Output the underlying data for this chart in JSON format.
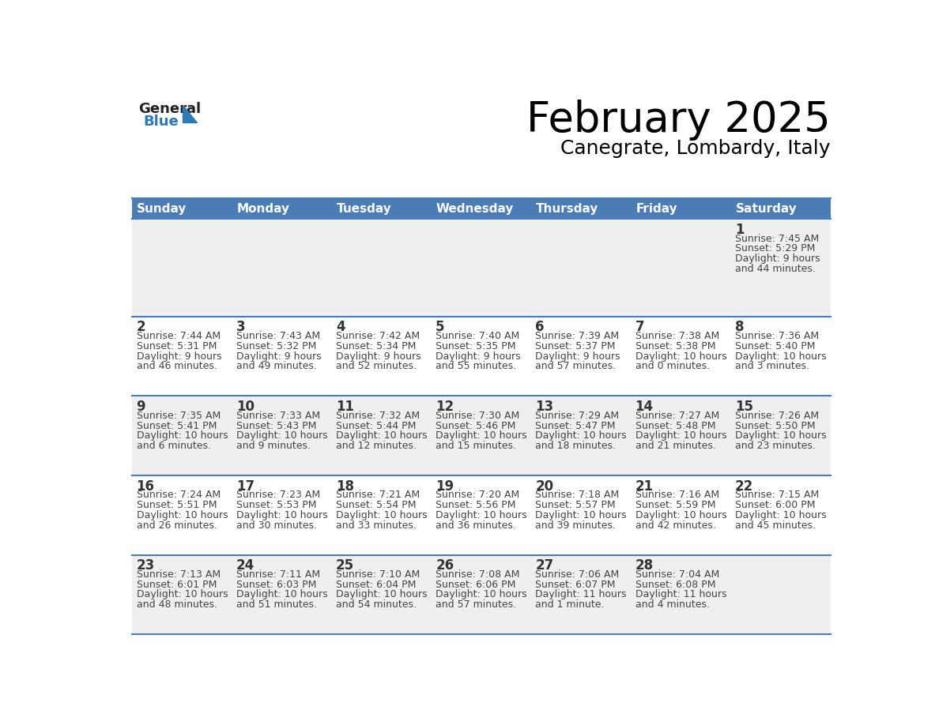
{
  "title": "February 2025",
  "subtitle": "Canegrate, Lombardy, Italy",
  "days_of_week": [
    "Sunday",
    "Monday",
    "Tuesday",
    "Wednesday",
    "Thursday",
    "Friday",
    "Saturday"
  ],
  "header_bg": "#4a7db5",
  "header_text": "#ffffff",
  "row_bg_even": "#efefef",
  "row_bg_odd": "#ffffff",
  "border_color": "#4a7db5",
  "text_color": "#444444",
  "day_num_color": "#333333",
  "logo_general_color": "#222222",
  "logo_blue_color": "#2e7ab5",
  "calendar_data": [
    [
      null,
      null,
      null,
      null,
      null,
      null,
      {
        "day": 1,
        "sunrise": "7:45 AM",
        "sunset": "5:29 PM",
        "daylight": "9 hours and 44 minutes."
      }
    ],
    [
      {
        "day": 2,
        "sunrise": "7:44 AM",
        "sunset": "5:31 PM",
        "daylight": "9 hours and 46 minutes."
      },
      {
        "day": 3,
        "sunrise": "7:43 AM",
        "sunset": "5:32 PM",
        "daylight": "9 hours and 49 minutes."
      },
      {
        "day": 4,
        "sunrise": "7:42 AM",
        "sunset": "5:34 PM",
        "daylight": "9 hours and 52 minutes."
      },
      {
        "day": 5,
        "sunrise": "7:40 AM",
        "sunset": "5:35 PM",
        "daylight": "9 hours and 55 minutes."
      },
      {
        "day": 6,
        "sunrise": "7:39 AM",
        "sunset": "5:37 PM",
        "daylight": "9 hours and 57 minutes."
      },
      {
        "day": 7,
        "sunrise": "7:38 AM",
        "sunset": "5:38 PM",
        "daylight": "10 hours and 0 minutes."
      },
      {
        "day": 8,
        "sunrise": "7:36 AM",
        "sunset": "5:40 PM",
        "daylight": "10 hours and 3 minutes."
      }
    ],
    [
      {
        "day": 9,
        "sunrise": "7:35 AM",
        "sunset": "5:41 PM",
        "daylight": "10 hours and 6 minutes."
      },
      {
        "day": 10,
        "sunrise": "7:33 AM",
        "sunset": "5:43 PM",
        "daylight": "10 hours and 9 minutes."
      },
      {
        "day": 11,
        "sunrise": "7:32 AM",
        "sunset": "5:44 PM",
        "daylight": "10 hours and 12 minutes."
      },
      {
        "day": 12,
        "sunrise": "7:30 AM",
        "sunset": "5:46 PM",
        "daylight": "10 hours and 15 minutes."
      },
      {
        "day": 13,
        "sunrise": "7:29 AM",
        "sunset": "5:47 PM",
        "daylight": "10 hours and 18 minutes."
      },
      {
        "day": 14,
        "sunrise": "7:27 AM",
        "sunset": "5:48 PM",
        "daylight": "10 hours and 21 minutes."
      },
      {
        "day": 15,
        "sunrise": "7:26 AM",
        "sunset": "5:50 PM",
        "daylight": "10 hours and 23 minutes."
      }
    ],
    [
      {
        "day": 16,
        "sunrise": "7:24 AM",
        "sunset": "5:51 PM",
        "daylight": "10 hours and 26 minutes."
      },
      {
        "day": 17,
        "sunrise": "7:23 AM",
        "sunset": "5:53 PM",
        "daylight": "10 hours and 30 minutes."
      },
      {
        "day": 18,
        "sunrise": "7:21 AM",
        "sunset": "5:54 PM",
        "daylight": "10 hours and 33 minutes."
      },
      {
        "day": 19,
        "sunrise": "7:20 AM",
        "sunset": "5:56 PM",
        "daylight": "10 hours and 36 minutes."
      },
      {
        "day": 20,
        "sunrise": "7:18 AM",
        "sunset": "5:57 PM",
        "daylight": "10 hours and 39 minutes."
      },
      {
        "day": 21,
        "sunrise": "7:16 AM",
        "sunset": "5:59 PM",
        "daylight": "10 hours and 42 minutes."
      },
      {
        "day": 22,
        "sunrise": "7:15 AM",
        "sunset": "6:00 PM",
        "daylight": "10 hours and 45 minutes."
      }
    ],
    [
      {
        "day": 23,
        "sunrise": "7:13 AM",
        "sunset": "6:01 PM",
        "daylight": "10 hours and 48 minutes."
      },
      {
        "day": 24,
        "sunrise": "7:11 AM",
        "sunset": "6:03 PM",
        "daylight": "10 hours and 51 minutes."
      },
      {
        "day": 25,
        "sunrise": "7:10 AM",
        "sunset": "6:04 PM",
        "daylight": "10 hours and 54 minutes."
      },
      {
        "day": 26,
        "sunrise": "7:08 AM",
        "sunset": "6:06 PM",
        "daylight": "10 hours and 57 minutes."
      },
      {
        "day": 27,
        "sunrise": "7:06 AM",
        "sunset": "6:07 PM",
        "daylight": "11 hours and 1 minute."
      },
      {
        "day": 28,
        "sunrise": "7:04 AM",
        "sunset": "6:08 PM",
        "daylight": "11 hours and 4 minutes."
      },
      null
    ]
  ]
}
